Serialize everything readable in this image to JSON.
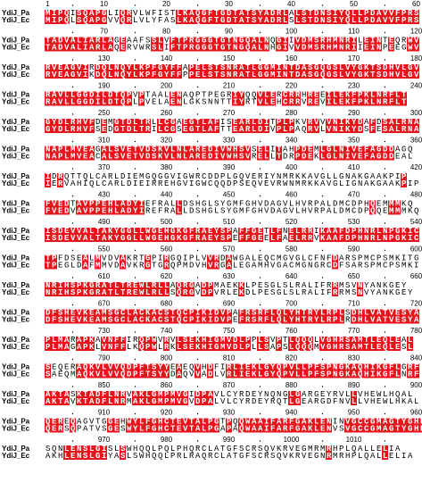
{
  "names": [
    "YdiJ_Pa",
    "YdiJ_Ec"
  ],
  "blocks": [
    {
      "ticks": [
        1,
        10,
        20,
        30,
        40,
        50,
        60
      ],
      "rows": [
        "MIPQISQAPGLIQRVLWFISTLKAQGFTGDTATSYADRLALSTDNSIYQLLPDAVVFPRS",
        "MIPQLSQAPGVVQRLVLYFASLKAQGFTGDTATSYADRLSLSTDNSIYQLLPDAVVFPRS"
      ]
    },
    {
      "ticks": [
        70,
        80,
        90,
        100,
        110,
        120
      ],
      "rows": [
        "TADVALIARLAGEAAFSSLVFTPRGGGTGTNGQALNQGIIVDMSRHMNRILEINTEQRWV",
        "TADVALIARLAQERVWRSLIFTPRGGGTGTNGQALNHGIVVDMSRHMNRIIEINPEEGWV"
      ]
    },
    {
      "ticks": [
        130,
        140,
        150,
        160,
        170,
        180
      ],
      "rows": [
        "RVEAGVIRDQLNQYLKPFGYFFAPELSTSNRATLGGMINTDASGQGSLVYGKTSDHVLGV",
        "RVEAGVIKDQLNQYLKPFGYFFPPELSTSNRATLGGMINTDASGQGSLVYGKTSDHVLGV"
      ]
    },
    {
      "ticks": [
        190,
        200,
        210,
        220,
        230,
        240
      ],
      "rows": [
        "RAVLLGGDILDTQPVPTAALENAQPTPEGRIYQQVLERCRRHREEILEKFPKLNRFLT",
        "RAVLLGGDILDTQPLPVELAENLGKSNNTTIYRTVLEHCRRVREVILEKFPKLNRFLT"
      ]
    },
    {
      "ticks": [
        250,
        260,
        270,
        280,
        290,
        300
      ],
      "rows": [
        "GYDLRHVFDEMGTDLTRLLCGAEGTLAFISEARLDITPLPKVRVVVNIKYDAFDSALRNA",
        "GYDLRHVFSEDGTDLTRILCGSEGTLAFTTEARLDIVPLPAQRVLVNIKYDSFESALRNA"
      ]
    },
    {
      "ticks": [
        310,
        320,
        330,
        340,
        350,
        360
      ],
      "rows": [
        "NAPLMVEAGALSVETVDSKVLNLAREDIVWHSVSELITAHPDEMLGLNIVEFAGDDAGQ",
        "NAPLMVEACALSVETVDSKVLNLAREDIVWHSVRELLTDRPDEKLGLNIVEFAGDDEAL"
      ]
    },
    {
      "ticks": [
        370,
        380,
        390,
        400,
        410,
        420
      ],
      "rows": [
        "IDRQTTQLCARLDIEMGQGGVIGWRCDDPLGQVERIYNMRKKAVGLLGNAKGAAKPIP",
        "IERVAHIQLCARLDIEIRREHGVIGWCQQDPSEQVEVRWNMRKKAVGLIGNAKGAAKPIP"
      ]
    },
    {
      "ticks": [
        430,
        440,
        450,
        460,
        470,
        480
      ],
      "rows": [
        "FVEDTAVPPEHLADYIEFRALLDSHGLSYGMFGHVDAGVLHVRPALDMCDPHQEMMMKQ",
        "FVEDVAVPPEHLADYIREFRALLDSHGLSYGMFGHVDAGVLHVRPALDMCDPQQEMMMKQ"
      ]
    },
    {
      "ticks": [
        490,
        500,
        510,
        520,
        530,
        540
      ],
      "rows": [
        "ISDEVVALTAKYGGLLWGEHGKGFRAEYSPAFFGETLFNELRRIKAAFDPHNRLNPGKIC",
        "ISDEVVALTAKYGGLLWGEHGKGFRAEYSPEFFGEELFAELRRVKAAFDPHNRLNPGKIC"
      ]
    },
    {
      "ticks": [
        550,
        560,
        570,
        580,
        590,
        600
      ],
      "rows": [
        "TPFDSEALMVDVAKRTGPIRGQIPLVVRDAWGALEQCMGVGLCFNFDARSPMCPSMKITG",
        "TPEGLDAFMMVDAVKRGTGRQPMDVHVRGALEGAMHVGACMGNGRCDFSARSPMCPSMKI"
      ]
    },
    {
      "ticks": [
        610,
        620,
        630,
        640,
        650,
        660
      ],
      "rows": [
        "NRIHSPKGRATLTREWLRLLAQRGADPMAEKKLPESGLSLRALIFRRMSVNYANKGEY",
        "NRIHSPKGRATLTREWLRLLSQRGVDPVRLEKDLPESGLSLRALIFRRMSNVYANKGEY"
      ]
    },
    {
      "ticks": [
        670,
        680,
        690,
        700,
        710,
        720
      ],
      "rows": [
        "DFSHEVKEAMSGCLACKACSTQCPIKIDVPAFRSRFLQLYHTRYLRPLSDHLVATVESYA",
        "DFSHEVKEAMSGCLACKACSTQCPIKIDVPEFRSRFLQLYHTRYLRPLRDHLVATVESYA"
      ]
    },
    {
      "ticks": [
        730,
        740,
        750,
        760,
        770,
        780
      ],
      "rows": [
        "PLMARAPKAVNFFIRQPWVRVLSEKHIGMVDLPPLSVPTLQQQLVGHRSAMTLEQLEAL",
        "PLMAGAPKLVNFFLKQPWLRKLSEKHIGMVDLPLLSAPSLQQQMVGHRSAMTLEQLESL"
      ]
    },
    {
      "ticks": [
        790,
        800,
        810,
        820,
        830,
        840
      ],
      "rows": [
        "SEQERAQKVLVVQDPFTSYYEAEQVHDFIRLIEKLGYQPVLLPFSPNGKAQHIKGFLGRF",
        "SAEQMAQKVLVVQDPFTSYYDAQVVADLVRLIEKLGYQPVLLPFSPNGKAQHIKGFLNRF"
      ]
    },
    {
      "ticks": [
        850,
        860,
        870,
        880,
        890,
        900
      ],
      "rows": [
        "AKTASKTADFLNRVAKLGMPMVGIDPAVLCYRDEYNQNGLGARGEYRVLLVHEWLHQAL",
        "AKTAVKTADFLNRMAKLGMPMVGVDPALVLCYRDEYRQTLGEARGDFNVLLVHEWLHKAL"
      ]
    },
    {
      "ticks": [
        910,
        920,
        930,
        940,
        950,
        960
      ],
      "rows": [
        "QEREQAGVTGGEHWYLFGHCTEVTALPGTPQQWAAIFARFGAKLENINVGCCGMAGTYGHE",
        "QERSQPATVSGESWYLFGHCTEVTALPGAPAQWAAIFARFGAKLENVSVGCCGMAGTYGHE"
      ]
    },
    {
      "ticks": [
        970,
        980,
        990,
        1000,
        1010
      ],
      "rows": [
        "SQNLENSLGISLSWHQQLPQLPHQRCLATGFSCRSQVKRVEGMRMRHPLQALLELIA",
        "AKHLENSLGIYASLSWHQQLPRLRAQRCLATGFSCRSQVKRVEGNRMRHPLQALLELIA"
      ]
    }
  ]
}
